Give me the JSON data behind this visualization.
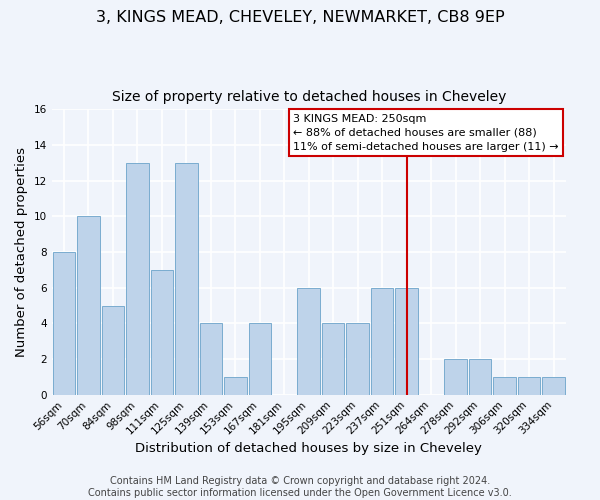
{
  "title": "3, KINGS MEAD, CHEVELEY, NEWMARKET, CB8 9EP",
  "subtitle": "Size of property relative to detached houses in Cheveley",
  "xlabel": "Distribution of detached houses by size in Cheveley",
  "ylabel": "Number of detached properties",
  "bar_labels": [
    "56sqm",
    "70sqm",
    "84sqm",
    "98sqm",
    "111sqm",
    "125sqm",
    "139sqm",
    "153sqm",
    "167sqm",
    "181sqm",
    "195sqm",
    "209sqm",
    "223sqm",
    "237sqm",
    "251sqm",
    "264sqm",
    "278sqm",
    "292sqm",
    "306sqm",
    "320sqm",
    "334sqm"
  ],
  "bar_values": [
    8,
    10,
    5,
    13,
    7,
    13,
    4,
    1,
    4,
    0,
    6,
    4,
    4,
    6,
    6,
    0,
    2,
    2,
    1,
    1,
    1
  ],
  "bar_color": "#bed3ea",
  "bar_edge_color": "#7aaccf",
  "ylim": [
    0,
    16
  ],
  "yticks": [
    0,
    2,
    4,
    6,
    8,
    10,
    12,
    14,
    16
  ],
  "property_line_index": 14,
  "property_line_label": "3 KINGS MEAD: 250sqm",
  "annotation_line1": "← 88% of detached houses are smaller (88)",
  "annotation_line2": "11% of semi-detached houses are larger (11) →",
  "footer_line1": "Contains HM Land Registry data © Crown copyright and database right 2024.",
  "footer_line2": "Contains public sector information licensed under the Open Government Licence v3.0.",
  "background_color": "#f0f4fb",
  "grid_color": "#ffffff",
  "title_fontsize": 11.5,
  "subtitle_fontsize": 10,
  "axis_label_fontsize": 9.5,
  "tick_fontsize": 7.5,
  "footer_fontsize": 7
}
